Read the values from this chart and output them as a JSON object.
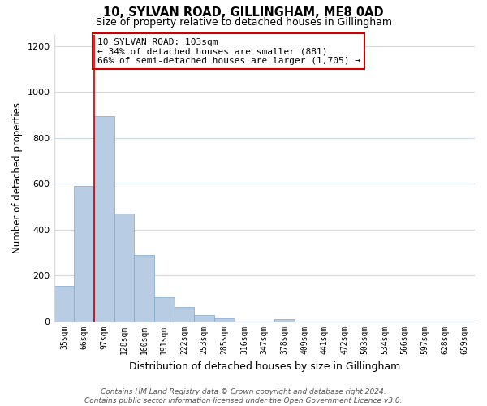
{
  "title": "10, SYLVAN ROAD, GILLINGHAM, ME8 0AD",
  "subtitle": "Size of property relative to detached houses in Gillingham",
  "xlabel": "Distribution of detached houses by size in Gillingham",
  "ylabel": "Number of detached properties",
  "categories": [
    "35sqm",
    "66sqm",
    "97sqm",
    "128sqm",
    "160sqm",
    "191sqm",
    "222sqm",
    "253sqm",
    "285sqm",
    "316sqm",
    "347sqm",
    "378sqm",
    "409sqm",
    "441sqm",
    "472sqm",
    "503sqm",
    "534sqm",
    "566sqm",
    "597sqm",
    "628sqm",
    "659sqm"
  ],
  "values": [
    155,
    590,
    893,
    470,
    290,
    105,
    63,
    28,
    15,
    0,
    0,
    10,
    0,
    0,
    0,
    0,
    0,
    0,
    0,
    0,
    0
  ],
  "bar_color": "#b8cce4",
  "bar_edge_color": "#7da6c8",
  "property_line_color": "#cc0000",
  "annotation_text": "10 SYLVAN ROAD: 103sqm\n← 34% of detached houses are smaller (881)\n66% of semi-detached houses are larger (1,705) →",
  "annotation_box_color": "#ffffff",
  "annotation_box_edge_color": "#cc0000",
  "ylim": [
    0,
    1250
  ],
  "yticks": [
    0,
    200,
    400,
    600,
    800,
    1000,
    1200
  ],
  "footer_text": "Contains HM Land Registry data © Crown copyright and database right 2024.\nContains public sector information licensed under the Open Government Licence v3.0.",
  "background_color": "#ffffff",
  "grid_color": "#ccd9ea"
}
